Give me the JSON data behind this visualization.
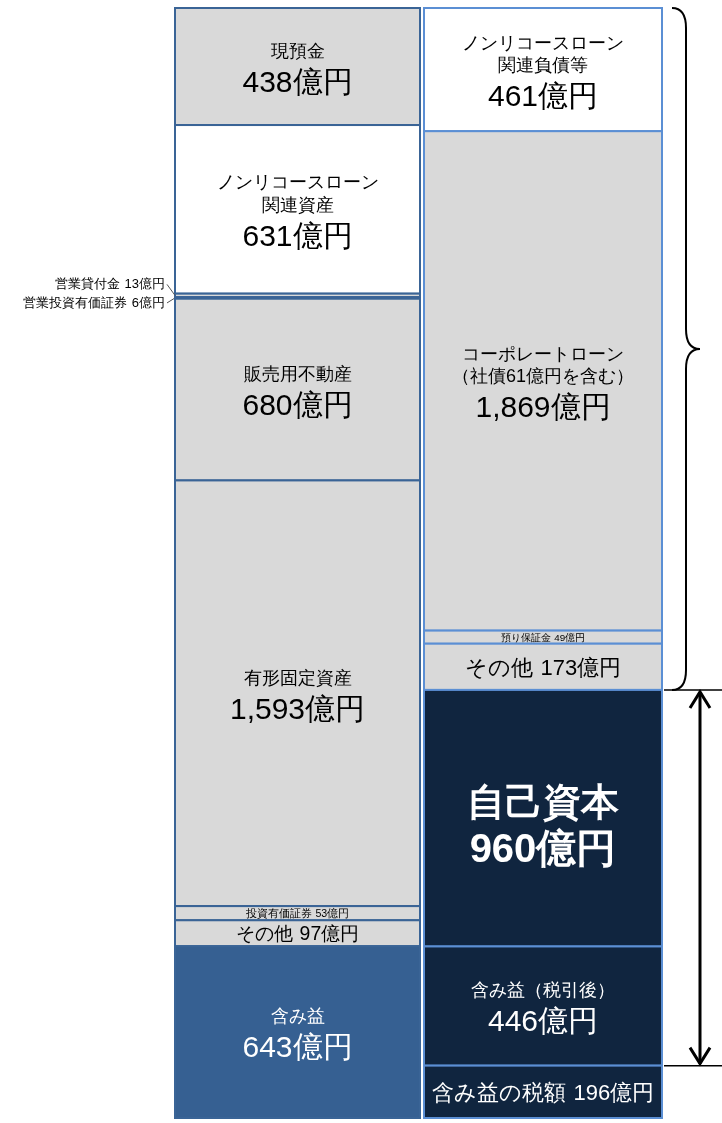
{
  "chart_data": [
    {
      "type": "other",
      "categories": [
        "現預金",
        "ノンリコースローン関連資産",
        "営業貸付金",
        "営業投資有価証券",
        "販売用不動産",
        "有形固定資産",
        "投資有価証券",
        "その他",
        "含み益"
      ],
      "values": [
        438,
        631,
        13,
        6,
        680,
        1593,
        53,
        97,
        643
      ],
      "value_labels": [
        "438億円",
        "631億円",
        "13億円",
        "6億円",
        "680億円",
        "1,593億円",
        "53億円",
        "97億円",
        "643億円"
      ],
      "colors": [
        "#d9d9d9",
        "#ffffff",
        "#d9d9d9",
        "#d9d9d9",
        "#d9d9d9",
        "#d9d9d9",
        "#d9d9d9",
        "#d9d9d9",
        "#366092"
      ]
    },
    {
      "type": "other",
      "categories": [
        "ノンリコースローン関連負債等",
        "コーポレートローン（社債61億円を含む）",
        "預り保証金",
        "その他",
        "自己資本",
        "含み益（税引後）",
        "含み益の税額"
      ],
      "values": [
        461,
        1869,
        49,
        173,
        960,
        446,
        196
      ],
      "value_labels": [
        "461億円",
        "1,869億円",
        "49億円",
        "173億円",
        "960億円",
        "446億円",
        "196億円"
      ],
      "colors": [
        "#ffffff",
        "#d9d9d9",
        "#d9d9d9",
        "#d9d9d9",
        "#10253f",
        "#10253f",
        "#10253f"
      ]
    }
  ]
}
